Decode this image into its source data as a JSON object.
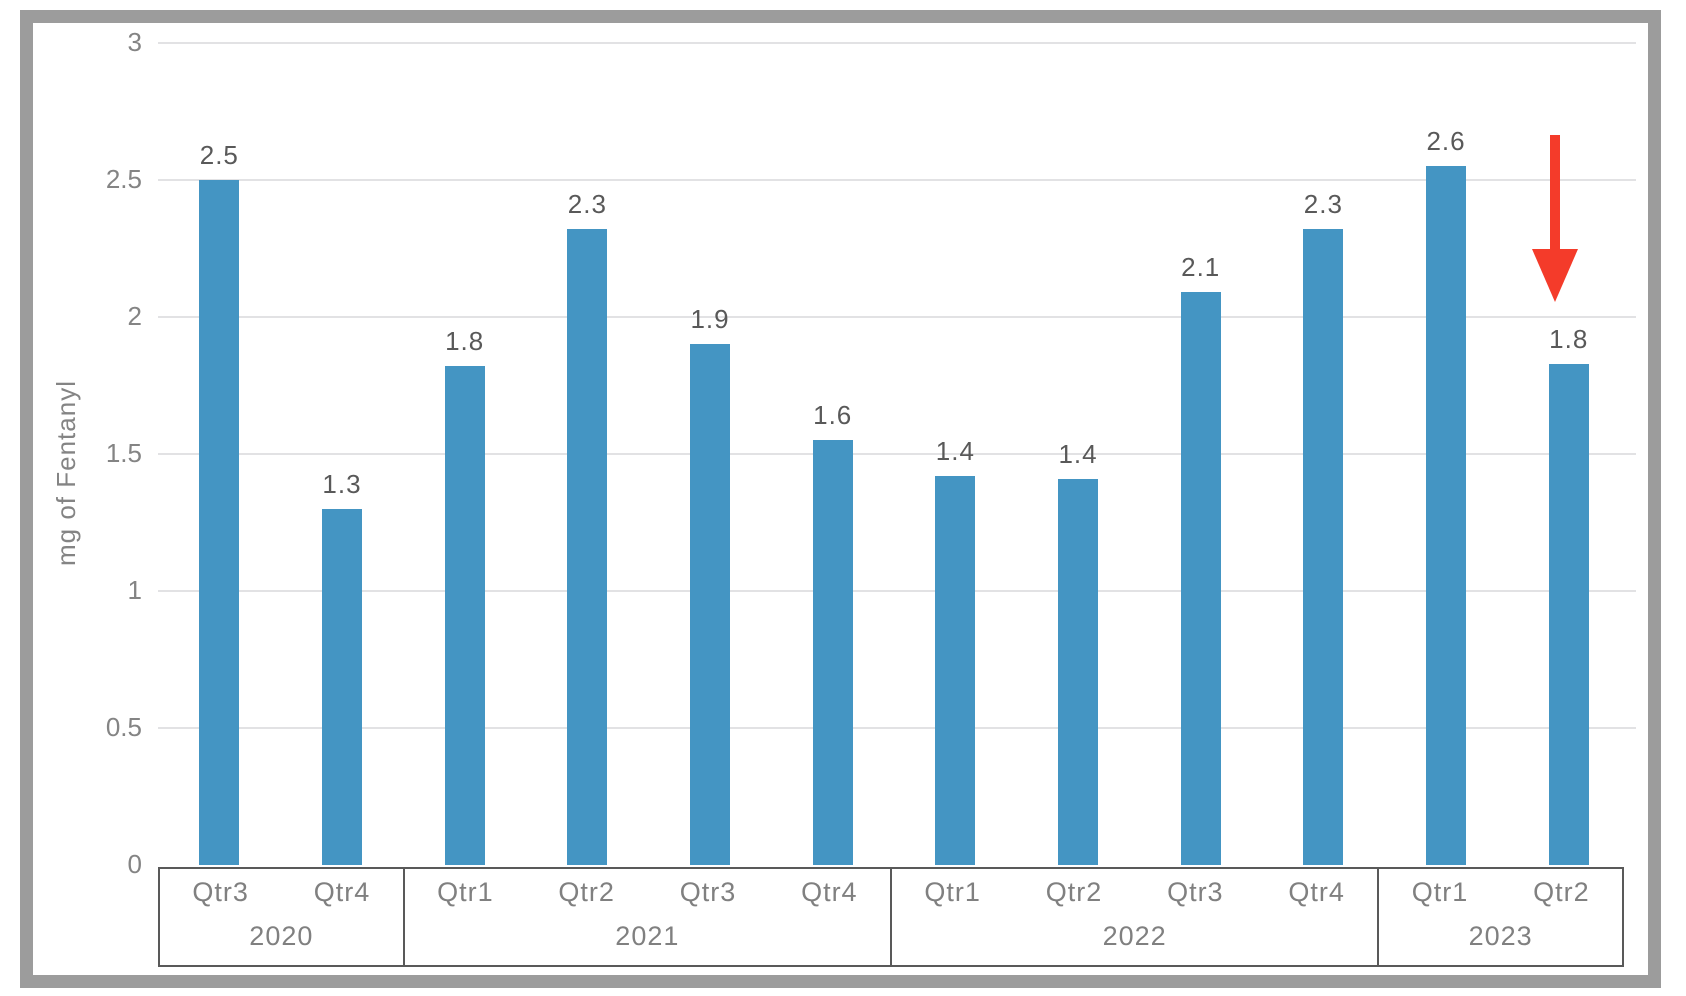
{
  "frame": {
    "border_color": "#9c9c9c",
    "background": "#ffffff"
  },
  "chart_data": {
    "type": "bar",
    "title": "",
    "xlabel": "",
    "ylabel": "mg of Fentanyl",
    "ylim": [
      0,
      3
    ],
    "grid": true,
    "legend": false,
    "bar_color": "#4495c3",
    "axis_text_color": "#808080",
    "value_label_color": "#595959",
    "yticks": [
      {
        "value": 3,
        "label": "3"
      },
      {
        "value": 2.5,
        "label": "2.5"
      },
      {
        "value": 2,
        "label": "2"
      },
      {
        "value": 1.5,
        "label": "1.5"
      },
      {
        "value": 1,
        "label": "1"
      },
      {
        "value": 0.5,
        "label": "0.5"
      },
      {
        "value": 0,
        "label": "0"
      }
    ],
    "categories": [
      {
        "year": "2020",
        "quarter": "Qtr3",
        "value": 2.5,
        "label": "2.5"
      },
      {
        "year": "2020",
        "quarter": "Qtr4",
        "value": 1.3,
        "label": "1.3"
      },
      {
        "year": "2021",
        "quarter": "Qtr1",
        "value": 1.82,
        "label": "1.8"
      },
      {
        "year": "2021",
        "quarter": "Qtr2",
        "value": 2.32,
        "label": "2.3"
      },
      {
        "year": "2021",
        "quarter": "Qtr3",
        "value": 1.9,
        "label": "1.9"
      },
      {
        "year": "2021",
        "quarter": "Qtr4",
        "value": 1.55,
        "label": "1.6"
      },
      {
        "year": "2022",
        "quarter": "Qtr1",
        "value": 1.42,
        "label": "1.4"
      },
      {
        "year": "2022",
        "quarter": "Qtr2",
        "value": 1.41,
        "label": "1.4"
      },
      {
        "year": "2022",
        "quarter": "Qtr3",
        "value": 2.09,
        "label": "2.1"
      },
      {
        "year": "2022",
        "quarter": "Qtr4",
        "value": 2.32,
        "label": "2.3"
      },
      {
        "year": "2023",
        "quarter": "Qtr1",
        "value": 2.55,
        "label": "2.6"
      },
      {
        "year": "2023",
        "quarter": "Qtr2",
        "value": 1.83,
        "label": "1.8"
      }
    ],
    "annotation": {
      "shape": "down-arrow",
      "color": "#f43b2a",
      "target_index": 11,
      "target": "2023 Qtr2"
    }
  }
}
